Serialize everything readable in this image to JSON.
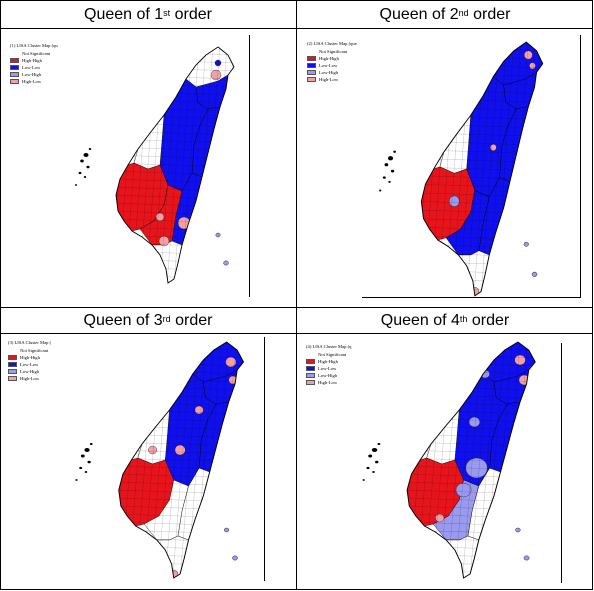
{
  "panels": [
    {
      "title_main": "Queen of 1",
      "title_sup": "st",
      "title_tail": " order",
      "legend_title": "(1) LISA Cluster Map (qu",
      "variant": 1
    },
    {
      "title_main": "Queen of 2",
      "title_sup": "nd",
      "title_tail": " order",
      "legend_title": "(2) LISA Cluster Map (que",
      "variant": 2
    },
    {
      "title_main": "Queen of 3",
      "title_sup": "rd",
      "title_tail": " order",
      "legend_title": "(3) LISA Cluster Map (",
      "variant": 3
    },
    {
      "title_main": "Queen of 4",
      "title_sup": "th",
      "title_tail": " order",
      "legend_title": "(4) LISA Cluster Map (q",
      "variant": 4
    }
  ],
  "legend_items": [
    {
      "label": "Not Significant",
      "color": "#ffffff"
    },
    {
      "label": "High-High",
      "color": "#e8141c"
    },
    {
      "label": "Low-Low",
      "color": "#1010ee"
    },
    {
      "label": "Low-High",
      "color": "#9a9af0"
    },
    {
      "label": "High-Low",
      "color": "#f2a0a6"
    }
  ],
  "colors": {
    "not_significant": "#ffffff",
    "high_high": "#e8141c",
    "low_low": "#1010ee",
    "low_high": "#9a9af0",
    "high_low": "#f2a0a6",
    "boundary": "#000000"
  }
}
